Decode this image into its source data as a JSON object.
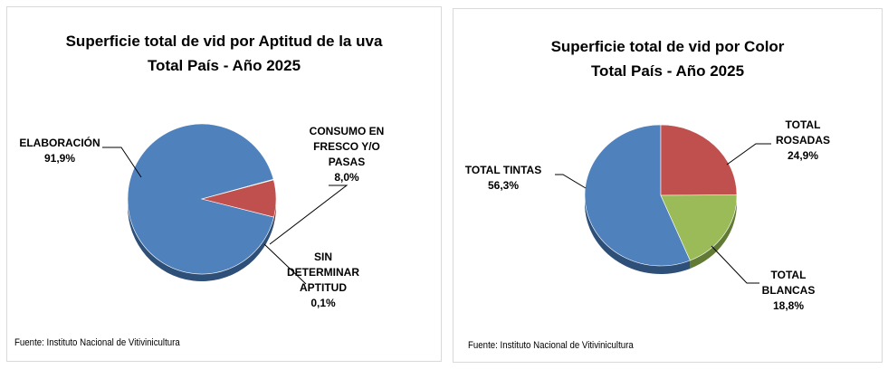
{
  "chart_data": [
    {
      "type": "pie",
      "title": "Superficie total de vid por Aptitud de la uva",
      "subtitle": "Total País - Año 2025",
      "slices": [
        {
          "label": "ELABORACIÓN",
          "value": 91.9,
          "display": "91,9%",
          "color": "#4f81bd",
          "dark": "#2d4f78"
        },
        {
          "label": "CONSUMO EN FRESCO Y/O PASAS",
          "value": 8.0,
          "display": "8,0%",
          "color": "#c0504d",
          "dark": "#7a2f2d"
        },
        {
          "label": "SIN DETERMINAR APTITUD",
          "value": 0.1,
          "display": "0,1%",
          "color": "#9bbb59",
          "dark": "#617a34"
        }
      ],
      "source": "Fuente: Instituto Nacional de Vitivinicultura"
    },
    {
      "type": "pie",
      "title": "Superficie total de vid por Color",
      "subtitle": "Total País - Año 2025",
      "slices": [
        {
          "label": "TOTAL TINTAS",
          "value": 56.3,
          "display": "56,3%",
          "color": "#4f81bd",
          "dark": "#2d4f78"
        },
        {
          "label": "TOTAL ROSADAS",
          "value": 24.9,
          "display": "24,9%",
          "color": "#c0504d",
          "dark": "#7a2f2d"
        },
        {
          "label": "TOTAL BLANCAS",
          "value": 18.8,
          "display": "18,8%",
          "color": "#9bbb59",
          "dark": "#617a34"
        }
      ],
      "source": "Fuente: Instituto Nacional de Vitivinicultura"
    }
  ]
}
